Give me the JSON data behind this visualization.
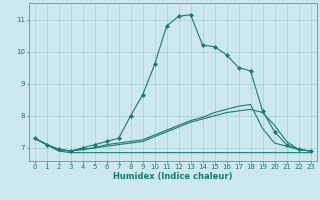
{
  "xlabel": "Humidex (Indice chaleur)",
  "background_color": "#cce8ec",
  "line_color": "#1a7a6e",
  "grid_color": "#aacdd4",
  "xlim": [
    -0.5,
    23.5
  ],
  "ylim": [
    6.6,
    11.5
  ],
  "yticks": [
    7,
    8,
    9,
    10,
    11
  ],
  "xticks": [
    0,
    1,
    2,
    3,
    4,
    5,
    6,
    7,
    8,
    9,
    10,
    11,
    12,
    13,
    14,
    15,
    16,
    17,
    18,
    19,
    20,
    21,
    22,
    23
  ],
  "lines": [
    {
      "x": [
        0,
        1,
        2,
        3,
        4,
        5,
        6,
        7,
        8,
        9,
        10,
        11,
        12,
        13,
        14,
        15,
        16,
        17,
        18,
        19,
        20,
        21,
        22,
        23
      ],
      "y": [
        7.3,
        7.1,
        6.9,
        6.85,
        6.85,
        6.85,
        6.85,
        6.85,
        6.85,
        6.85,
        6.85,
        6.85,
        6.85,
        6.85,
        6.85,
        6.85,
        6.85,
        6.85,
        6.85,
        6.85,
        6.85,
        6.85,
        6.85,
        6.85
      ],
      "marker": null,
      "lw": 0.8
    },
    {
      "x": [
        0,
        1,
        2,
        3,
        4,
        5,
        6,
        7,
        8,
        9,
        10,
        11,
        12,
        13,
        14,
        15,
        16,
        17,
        18,
        19,
        20,
        21,
        22,
        23
      ],
      "y": [
        7.3,
        7.1,
        6.95,
        6.9,
        6.95,
        7.0,
        7.05,
        7.1,
        7.15,
        7.2,
        7.35,
        7.5,
        7.65,
        7.8,
        7.9,
        8.0,
        8.1,
        8.15,
        8.2,
        8.1,
        7.7,
        7.2,
        6.95,
        6.9
      ],
      "marker": null,
      "lw": 0.8
    },
    {
      "x": [
        0,
        1,
        2,
        3,
        4,
        5,
        6,
        7,
        8,
        9,
        10,
        11,
        12,
        13,
        14,
        15,
        16,
        17,
        18,
        19,
        20,
        21,
        22,
        23
      ],
      "y": [
        7.3,
        7.1,
        6.95,
        6.9,
        7.0,
        7.1,
        7.2,
        7.3,
        8.0,
        8.65,
        9.6,
        10.8,
        11.1,
        11.15,
        10.2,
        10.15,
        9.9,
        9.5,
        9.4,
        8.15,
        7.5,
        7.1,
        6.95,
        6.9
      ],
      "marker": "D",
      "lw": 0.8
    },
    {
      "x": [
        0,
        1,
        2,
        3,
        4,
        5,
        6,
        7,
        8,
        9,
        10,
        11,
        12,
        13,
        14,
        15,
        16,
        17,
        18,
        19,
        20,
        21,
        22,
        23
      ],
      "y": [
        7.3,
        7.1,
        6.95,
        6.9,
        6.95,
        7.0,
        7.1,
        7.15,
        7.2,
        7.25,
        7.4,
        7.55,
        7.7,
        7.85,
        7.95,
        8.1,
        8.2,
        8.3,
        8.35,
        7.6,
        7.15,
        7.05,
        6.95,
        6.9
      ],
      "marker": null,
      "lw": 0.8
    }
  ]
}
